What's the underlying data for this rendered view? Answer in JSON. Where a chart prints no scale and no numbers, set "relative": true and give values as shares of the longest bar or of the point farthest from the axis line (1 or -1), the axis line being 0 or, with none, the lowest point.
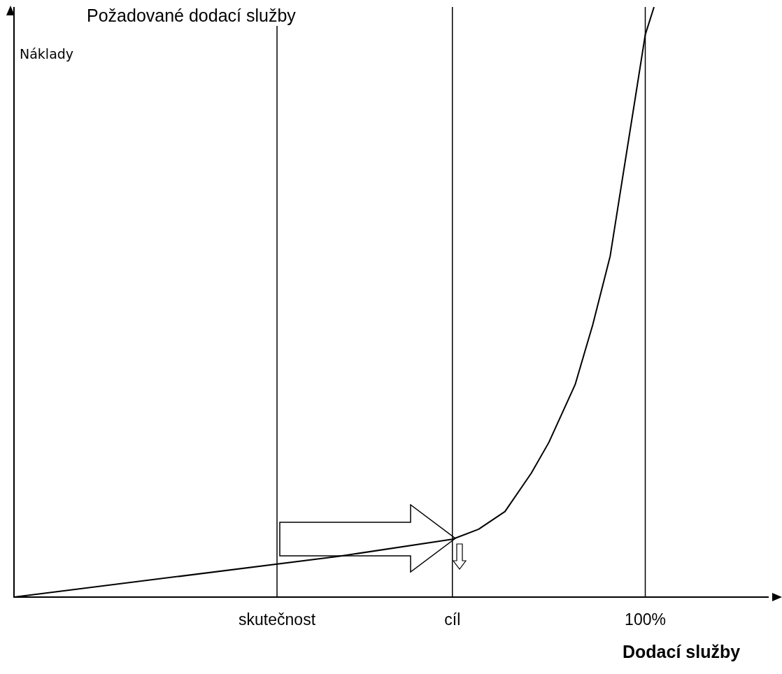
{
  "chart_data": {
    "type": "line",
    "title": "Požadované dodací služby",
    "ylabel": "Náklady",
    "xlabel": "Dodací služby",
    "relative": true,
    "categories": [
      null,
      null,
      null,
      null,
      null,
      null,
      null,
      null,
      null,
      null,
      null,
      null,
      null,
      null,
      null,
      null,
      null,
      null,
      null,
      null,
      null,
      null,
      null,
      null,
      null,
      null,
      null,
      null,
      null,
      null,
      "skutečnost",
      null,
      null,
      null,
      null,
      null,
      null,
      null,
      null,
      null,
      null,
      null,
      null,
      null,
      null,
      null,
      null,
      null,
      null,
      null,
      "cíl",
      null,
      null,
      null,
      null,
      null,
      null,
      null,
      null,
      null,
      null,
      null,
      null,
      null,
      null,
      null,
      null,
      null,
      null,
      null,
      null,
      null,
      "100%",
      null,
      null,
      null,
      null,
      null,
      null,
      null,
      null,
      null,
      null,
      null,
      null,
      null,
      null
    ],
    "series": [
      {
        "color": "#000000",
        "values": [
          0,
          null,
          null,
          null,
          null,
          null,
          null,
          null,
          null,
          null,
          null,
          null,
          null,
          null,
          null,
          null,
          null,
          null,
          null,
          null,
          null,
          null,
          null,
          null,
          null,
          null,
          null,
          null,
          null,
          null,
          null,
          null,
          null,
          null,
          null,
          null,
          null,
          0.069,
          null,
          null,
          null,
          null,
          null,
          null,
          null,
          null,
          null,
          null,
          null,
          null,
          0.098,
          null,
          null,
          0.115,
          null,
          null,
          0.145,
          null,
          null,
          0.21,
          null,
          0.262,
          null,
          null,
          0.36,
          null,
          0.461,
          null,
          0.578,
          0.672,
          null,
          0.859,
          0.953,
          1,
          null,
          null,
          null,
          null,
          null,
          null,
          null,
          null,
          null,
          null,
          null,
          null,
          null
        ]
      }
    ],
    "ref_lines": [
      {
        "axis": "x",
        "value": "skutečnost",
        "color": "#000000"
      },
      {
        "axis": "x",
        "value": "cíl",
        "color": "#000000"
      },
      {
        "axis": "x",
        "value": "100%",
        "color": "#000000"
      }
    ],
    "grid": false,
    "legend": false,
    "marker": "none",
    "line_style": "solid"
  }
}
